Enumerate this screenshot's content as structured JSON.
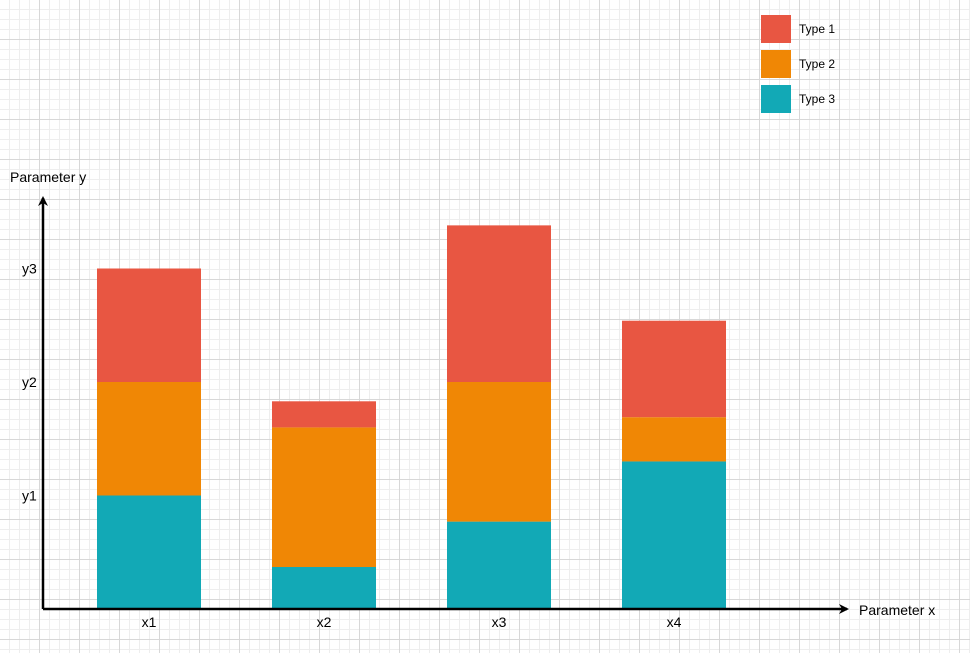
{
  "chart_data": {
    "type": "bar",
    "stacked": true,
    "title": "",
    "xlabel": "Parameter x",
    "ylabel": "Parameter y",
    "categories": [
      "x1",
      "x2",
      "x3",
      "x4"
    ],
    "y_ticks": [
      {
        "label": "y1",
        "value": 1
      },
      {
        "label": "y2",
        "value": 2
      },
      {
        "label": "y3",
        "value": 3
      }
    ],
    "ylim": [
      0,
      3.7
    ],
    "series": [
      {
        "name": "Type 3",
        "color": "#12A9B6",
        "values": [
          1.0,
          0.37,
          0.77,
          1.3
        ]
      },
      {
        "name": "Type 2",
        "color": "#F08705",
        "values": [
          1.0,
          1.23,
          1.23,
          0.39
        ]
      },
      {
        "name": "Type 1",
        "color": "#E85642",
        "values": [
          1.0,
          0.23,
          1.38,
          0.85
        ]
      }
    ],
    "legend": {
      "position": "top-right",
      "items": [
        {
          "label": "Type 1",
          "color": "#E85642"
        },
        {
          "label": "Type 2",
          "color": "#F08705"
        },
        {
          "label": "Type 3",
          "color": "#12A9B6"
        }
      ]
    },
    "grid": true
  }
}
